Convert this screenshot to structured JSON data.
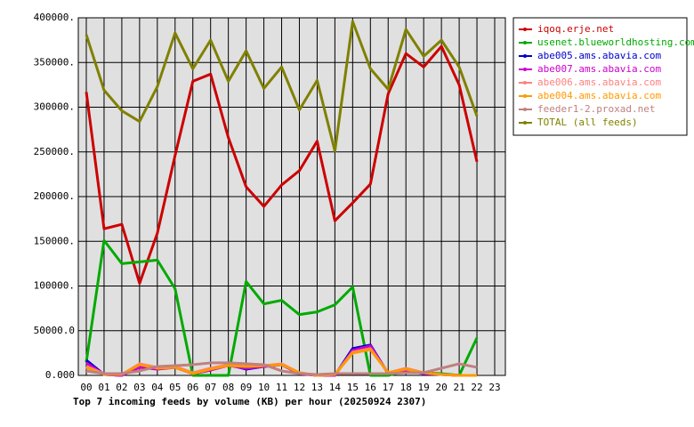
{
  "chart_data": {
    "type": "line",
    "title": "Top 7 incoming feeds by volume (KB) per hour (20250924 2307)",
    "categories": [
      "00",
      "01",
      "02",
      "03",
      "04",
      "05",
      "06",
      "07",
      "08",
      "09",
      "10",
      "11",
      "12",
      "13",
      "14",
      "15",
      "16",
      "17",
      "18",
      "19",
      "20",
      "21",
      "22",
      "23"
    ],
    "ylim": [
      0,
      400000
    ],
    "yticks": [
      {
        "value": 0,
        "label": "0.000"
      },
      {
        "value": 50000,
        "label": "50000.0"
      },
      {
        "value": 100000,
        "label": "100000."
      },
      {
        "value": 150000,
        "label": "150000."
      },
      {
        "value": 200000,
        "label": "200000."
      },
      {
        "value": 250000,
        "label": "250000."
      },
      {
        "value": 300000,
        "label": "300000."
      },
      {
        "value": 350000,
        "label": "350000."
      },
      {
        "value": 400000,
        "label": "400000."
      }
    ],
    "grid": true,
    "series": [
      {
        "name": "iqoq.erje.net",
        "color": "#cc0000",
        "values": [
          317000,
          164000,
          169000,
          103000,
          159000,
          246000,
          329000,
          337000,
          266000,
          211000,
          189000,
          213000,
          229000,
          262000,
          173000,
          193000,
          214000,
          315000,
          360000,
          345000,
          368000,
          325000,
          239000,
          null
        ]
      },
      {
        "name": "usenet.blueworldhosting.com",
        "color": "#00aa00",
        "values": [
          15000,
          151000,
          125000,
          127000,
          129000,
          97000,
          0,
          0,
          0,
          105000,
          80000,
          84000,
          68000,
          71000,
          79000,
          99000,
          0,
          0,
          5000,
          3000,
          2000,
          0,
          42000,
          null
        ]
      },
      {
        "name": "abe005.ams.abavia.com",
        "color": "#0000cc",
        "values": [
          17000,
          1000,
          0,
          10000,
          8000,
          9000,
          2000,
          6000,
          12000,
          7000,
          10000,
          12000,
          2000,
          0,
          0,
          30000,
          34000,
          2000,
          6000,
          2000,
          1000,
          0,
          0,
          null
        ]
      },
      {
        "name": "abe007.ams.abavia.com",
        "color": "#cc00cc",
        "values": [
          14000,
          1000,
          0,
          9000,
          7000,
          9000,
          2000,
          6000,
          11000,
          8000,
          10000,
          12000,
          2000,
          0,
          0,
          28000,
          33000,
          2000,
          6000,
          2000,
          1000,
          0,
          0,
          null
        ]
      },
      {
        "name": "abe006.ams.abavia.com",
        "color": "#ff8080",
        "values": [
          10000,
          2000,
          1000,
          13000,
          9000,
          10000,
          3000,
          8000,
          12000,
          10000,
          11000,
          13000,
          3000,
          0,
          1000,
          26000,
          30000,
          3000,
          8000,
          3000,
          1000,
          0,
          0,
          null
        ]
      },
      {
        "name": "abe004.ams.abavia.com",
        "color": "#ff9900",
        "values": [
          9000,
          1000,
          1000,
          12000,
          8000,
          9000,
          2000,
          7000,
          11000,
          10000,
          11000,
          12000,
          3000,
          0,
          1000,
          25000,
          29000,
          3000,
          7000,
          3000,
          1000,
          0,
          0,
          null
        ]
      },
      {
        "name": "feeder1-2.proxad.net",
        "color": "#c08080",
        "values": [
          5000,
          2000,
          2000,
          5000,
          10000,
          11000,
          12000,
          14000,
          14000,
          13000,
          12000,
          5000,
          2000,
          1000,
          2000,
          2000,
          2000,
          2000,
          3000,
          3000,
          8000,
          13000,
          9000,
          null
        ]
      },
      {
        "name": "TOTAL (all feeds)",
        "color": "#808000",
        "values": [
          381000,
          319000,
          296000,
          284000,
          323000,
          383000,
          343000,
          375000,
          329000,
          363000,
          321000,
          345000,
          297000,
          330000,
          251000,
          396000,
          343000,
          320000,
          387000,
          357000,
          375000,
          345000,
          290000,
          null
        ]
      }
    ]
  }
}
